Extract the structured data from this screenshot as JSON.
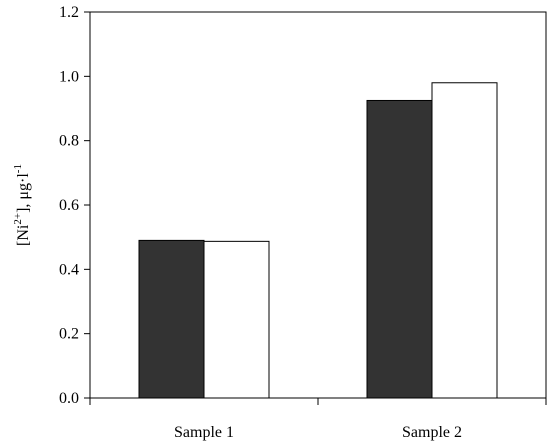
{
  "chart_data": {
    "type": "bar",
    "categories": [
      "Sample 1",
      "Sample 2"
    ],
    "series": [
      {
        "values": [
          0.49,
          0.925
        ],
        "color": "#333333"
      },
      {
        "values": [
          0.487,
          0.98
        ],
        "color": "#ffffff"
      }
    ],
    "ylabel": {
      "open": "[Ni",
      "charge": "2+",
      "mid": "],  μg·l",
      "exponent": "-1"
    },
    "ylim": [
      0,
      1.2
    ],
    "yticks": [
      "0.0",
      "0.2",
      "0.4",
      "0.6",
      "0.8",
      "1.0",
      "1.2"
    ],
    "grid": false,
    "legend": "none"
  }
}
